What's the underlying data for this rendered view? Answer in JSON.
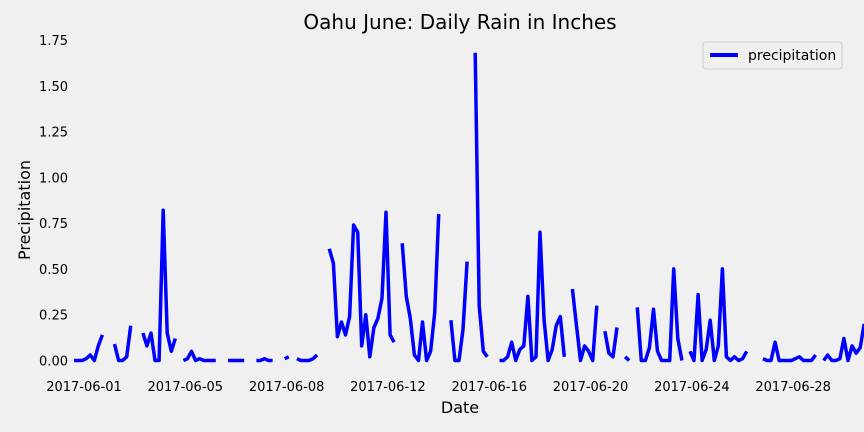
{
  "chart_data": {
    "type": "line",
    "title": "Oahu June: Daily Rain in Inches",
    "xlabel": "Date",
    "ylabel": "Precipitation",
    "ylim": [
      -0.03,
      1.75
    ],
    "yticks": [
      0.0,
      0.25,
      0.5,
      0.75,
      1.0,
      1.25,
      1.5,
      1.75
    ],
    "ytick_labels": [
      "0.00",
      "0.25",
      "0.50",
      "0.75",
      "1.00",
      "1.25",
      "1.50",
      "1.75"
    ],
    "xlim": [
      0,
      191
    ],
    "xticks": [
      0,
      25,
      50,
      75,
      100,
      125,
      150,
      175
    ],
    "xtick_labels": [
      "2017-06-01",
      "2017-06-05",
      "2017-06-08",
      "2017-06-12",
      "2017-06-16",
      "2017-06-20",
      "2017-06-24",
      "2017-06-28"
    ],
    "grid": false,
    "legend": {
      "position": "top-right",
      "entries": [
        "precipitation"
      ]
    },
    "series": [
      {
        "name": "precipitation",
        "color": "#0000ff",
        "values": [
          0.0,
          0.0,
          0.0,
          0.01,
          0.03,
          0.0,
          0.08,
          0.14,
          null,
          null,
          0.09,
          0.0,
          0.0,
          0.02,
          0.19,
          null,
          null,
          0.15,
          0.08,
          0.15,
          0.0,
          0.0,
          0.82,
          0.15,
          0.05,
          0.12,
          null,
          0.0,
          0.01,
          0.05,
          0.0,
          0.01,
          0.0,
          0.0,
          0.0,
          0.0,
          null,
          null,
          0.0,
          0.0,
          0.0,
          0.0,
          0.0,
          null,
          null,
          0.0,
          0.0,
          0.01,
          0.0,
          0.0,
          null,
          null,
          0.01,
          0.02,
          null,
          0.01,
          0.0,
          0.0,
          0.0,
          0.01,
          0.03,
          null,
          null,
          0.61,
          0.53,
          0.13,
          0.21,
          0.14,
          0.24,
          0.74,
          0.7,
          0.08,
          0.25,
          0.02,
          0.18,
          0.23,
          0.34,
          0.81,
          0.14,
          0.1,
          null,
          0.64,
          0.35,
          0.23,
          0.03,
          0.0,
          0.21,
          0.0,
          0.05,
          0.26,
          0.8,
          null,
          null,
          0.22,
          0.0,
          0.0,
          0.17,
          0.54,
          null,
          1.68,
          0.3,
          0.05,
          0.02,
          null,
          null,
          0.0,
          0.0,
          0.02,
          0.1,
          0.0,
          0.06,
          0.08,
          0.35,
          0.0,
          0.02,
          0.7,
          0.22,
          0.0,
          0.06,
          0.19,
          0.24,
          0.02,
          null,
          0.39,
          0.19,
          0.0,
          0.08,
          0.05,
          0.0,
          0.3,
          null,
          0.16,
          0.04,
          0.02,
          0.18,
          null,
          0.02,
          0.0,
          null,
          0.29,
          0.0,
          0.0,
          0.07,
          0.28,
          0.05,
          0.0,
          0.0,
          0.0,
          0.5,
          0.12,
          0.0,
          null,
          0.05,
          0.0,
          0.36,
          0.0,
          0.06,
          0.22,
          0.0,
          0.08,
          0.5,
          0.02,
          0.0,
          0.02,
          0.0,
          0.01,
          0.05,
          null,
          null,
          null,
          0.01,
          0.0,
          0.0,
          0.1,
          0.0,
          0.0,
          0.0,
          0.0,
          0.01,
          0.02,
          0.0,
          0.0,
          0.0,
          0.03,
          null,
          0.0,
          0.03,
          0.0,
          0.0,
          0.01,
          0.12,
          0.0,
          0.08,
          0.04,
          0.07,
          0.2
        ]
      }
    ]
  }
}
